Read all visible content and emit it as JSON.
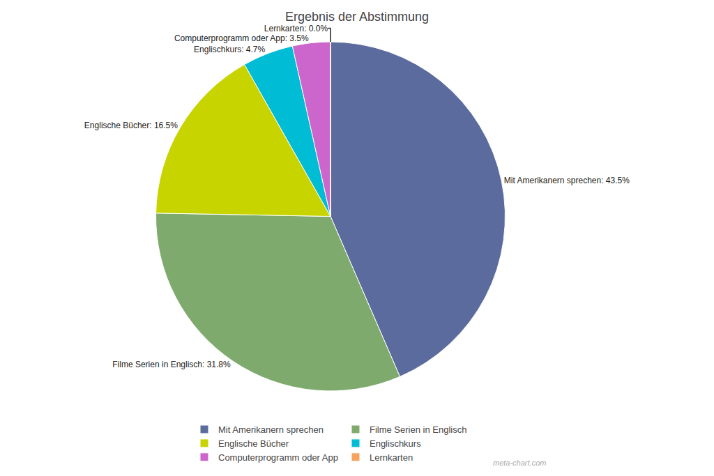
{
  "chart_data": {
    "type": "pie",
    "title": "Ergebnis der Abstimmung",
    "categories": [
      "Mit Amerikanern sprechen",
      "Filme Serien in Englisch",
      "Englische Bücher",
      "Englischkurs",
      "Computerprogramm oder App",
      "Lernkarten"
    ],
    "values": [
      43.5,
      31.8,
      16.5,
      4.7,
      3.5,
      0.001
    ],
    "value_labels": [
      "Mit Amerikanern sprechen: 43.5%",
      "Filme Serien in Englisch: 31.8%",
      "Englische Bücher: 16.5%",
      "Englischkurs: 4.7%",
      "Computerprogramm oder App: 3.5%",
      "Lernkarten: 0.0%"
    ],
    "colors": [
      "#5b6b9e",
      "#7faa6e",
      "#c8d400",
      "#00bcd4",
      "#cc66cc",
      "#f4a460"
    ],
    "data_labels": true,
    "legend": "bottom",
    "annotations": [
      "meta-chart.com"
    ]
  }
}
